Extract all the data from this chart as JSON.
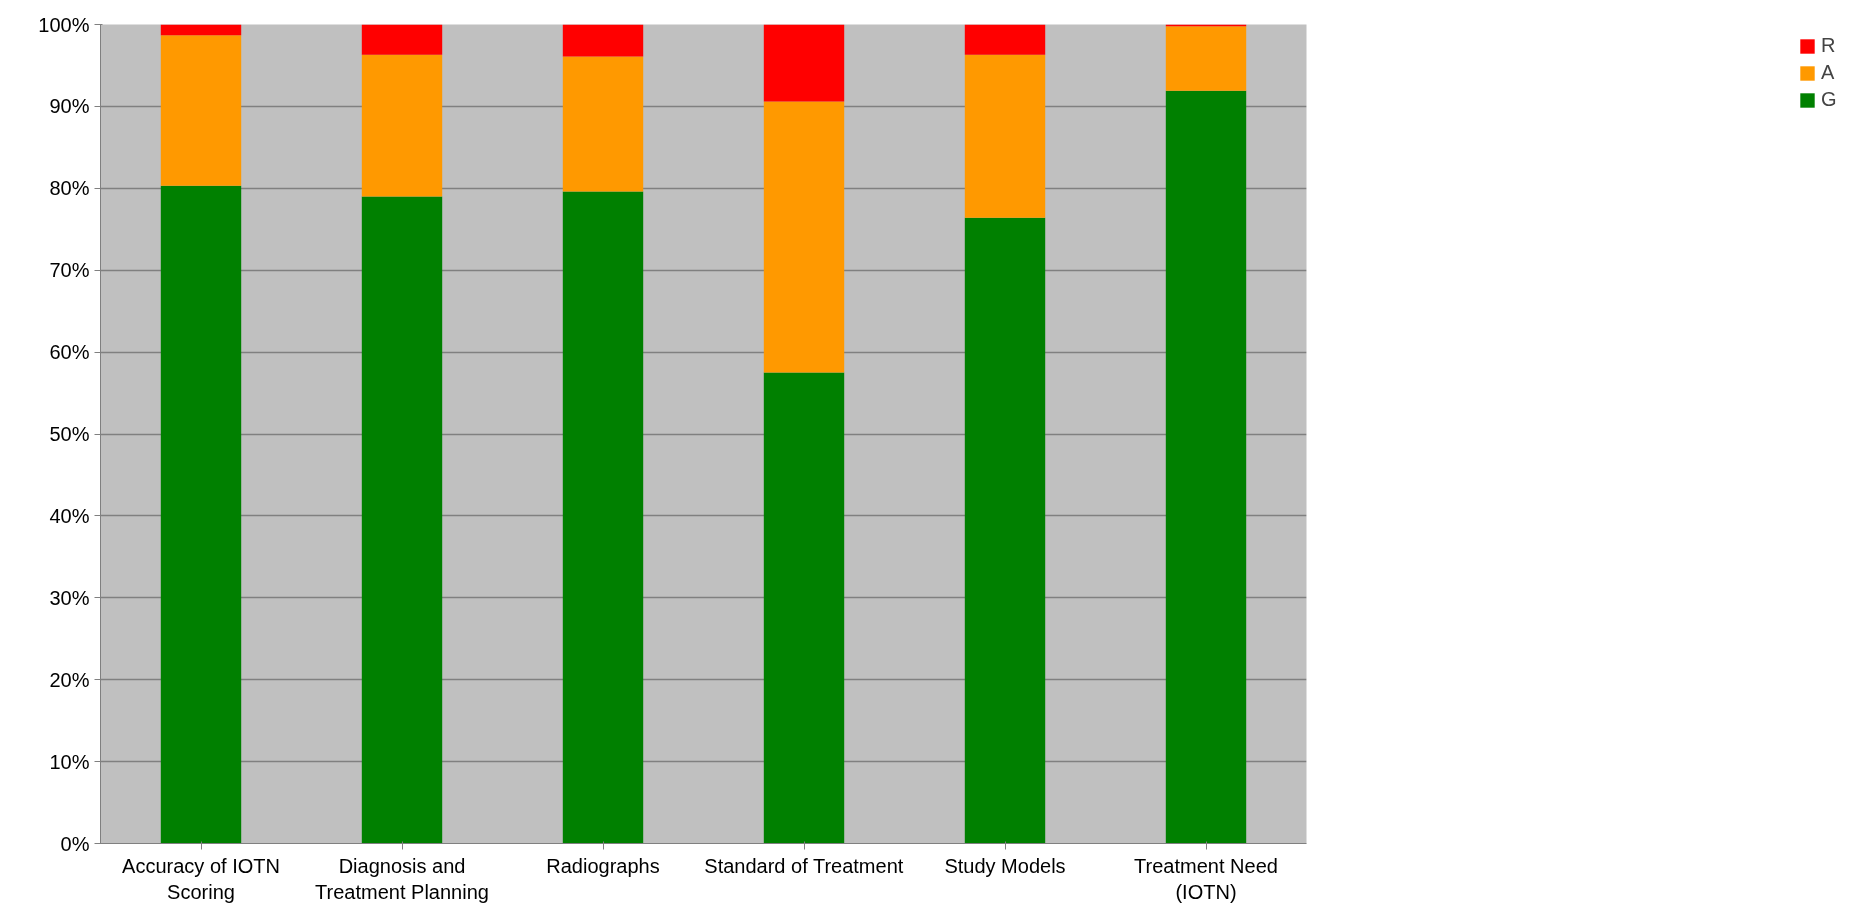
{
  "chart_data": {
    "type": "bar",
    "stacked": true,
    "categories": [
      "Accuracy of IOTN\nScoring",
      "Diagnosis and\nTreatment Planning",
      "Radiographs",
      "Standard of Treatment",
      "Study Models",
      "Treatment Need\n(IOTN)"
    ],
    "series": [
      {
        "name": "G",
        "color": "#008000",
        "values": [
          80.3,
          79.0,
          79.6,
          57.5,
          76.4,
          91.9
        ]
      },
      {
        "name": "A",
        "color": "#ff9900",
        "values": [
          18.4,
          17.3,
          16.5,
          33.1,
          19.9,
          7.9
        ]
      },
      {
        "name": "R",
        "color": "#ff0000",
        "values": [
          1.3,
          3.7,
          3.9,
          9.4,
          3.7,
          0.2
        ]
      }
    ],
    "ylim": [
      0,
      100
    ],
    "yticks": [
      {
        "value": 0,
        "label": "0%"
      },
      {
        "value": 10,
        "label": "10%"
      },
      {
        "value": 20,
        "label": "20%"
      },
      {
        "value": 30,
        "label": "30%"
      },
      {
        "value": 40,
        "label": "40%"
      },
      {
        "value": 50,
        "label": "50%"
      },
      {
        "value": 60,
        "label": "60%"
      },
      {
        "value": 70,
        "label": "70%"
      },
      {
        "value": 80,
        "label": "80%"
      },
      {
        "value": 90,
        "label": "90%"
      },
      {
        "value": 100,
        "label": "100%"
      }
    ],
    "grid": "y",
    "legend": "right"
  }
}
